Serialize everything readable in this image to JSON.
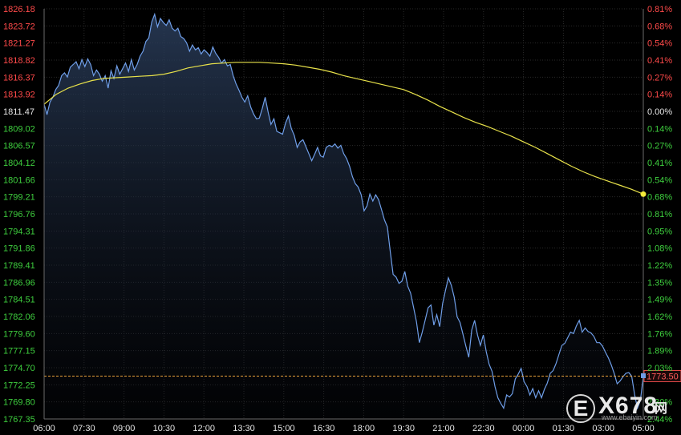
{
  "chart_data": {
    "type": "line",
    "x_ticks": [
      "06:00",
      "07:30",
      "09:00",
      "10:30",
      "12:00",
      "13:30",
      "15:00",
      "16:30",
      "18:00",
      "19:30",
      "21:00",
      "22:30",
      "00:00",
      "01:30",
      "03:00",
      "05:00"
    ],
    "y_ticks_left": [
      "1826.18",
      "1823.72",
      "1821.27",
      "1818.82",
      "1816.37",
      "1813.92",
      "1811.47",
      "1809.02",
      "1806.57",
      "1804.12",
      "1801.66",
      "1799.21",
      "1796.76",
      "1794.31",
      "1791.86",
      "1789.41",
      "1786.96",
      "1784.51",
      "1782.06",
      "1779.60",
      "1777.15",
      "1774.70",
      "1772.25",
      "1769.80",
      "1767.35"
    ],
    "y_ticks_right": [
      "0.81%",
      "0.68%",
      "0.54%",
      "0.41%",
      "0.27%",
      "0.14%",
      "0.00%",
      "0.14%",
      "0.27%",
      "0.41%",
      "0.54%",
      "0.68%",
      "0.81%",
      "0.95%",
      "1.08%",
      "1.22%",
      "1.35%",
      "1.49%",
      "1.62%",
      "1.76%",
      "1.89%",
      "2.03%",
      "",
      "2.30%",
      "2.44%"
    ],
    "ylim": [
      1767.35,
      1826.18
    ],
    "reference_price": 1811.47,
    "last_price_label": "1773.50",
    "last_price": 1773.5,
    "grid": true,
    "series": [
      {
        "values": [
          1812.5,
          1811.0,
          1812.8,
          1813.5,
          1814.6,
          1815.2,
          1816.6,
          1817.0,
          1816.4,
          1817.8,
          1818.2,
          1818.6,
          1817.6,
          1818.9,
          1817.9,
          1819.0,
          1818.2,
          1816.6,
          1817.4,
          1816.8,
          1815.8,
          1816.6,
          1814.8,
          1817.3,
          1816.2,
          1818.0,
          1816.8,
          1817.6,
          1818.4,
          1817.2,
          1818.9,
          1817.4,
          1818.2,
          1819.4,
          1820.1,
          1821.5,
          1822.0,
          1824.3,
          1825.4,
          1823.6,
          1824.8,
          1824.2,
          1823.8,
          1824.6,
          1823.4,
          1823.0,
          1823.4,
          1822.2,
          1821.9,
          1821.3,
          1820.1,
          1821.0,
          1820.3,
          1820.6,
          1819.7,
          1820.3,
          1819.9,
          1819.4,
          1820.7,
          1819.8,
          1819.2,
          1818.4,
          1818.9,
          1818.0,
          1818.2,
          1816.6,
          1815.4,
          1814.5,
          1813.5,
          1812.8,
          1813.7,
          1812.1,
          1811.1,
          1810.4,
          1810.5,
          1811.9,
          1813.5,
          1811.4,
          1809.6,
          1810.4,
          1808.6,
          1808.4,
          1808.2,
          1809.8,
          1810.8,
          1809.0,
          1808.0,
          1806.3,
          1807.1,
          1807.4,
          1806.4,
          1805.4,
          1804.4,
          1805.3,
          1806.3,
          1805.1,
          1804.9,
          1806.3,
          1806.6,
          1806.4,
          1806.8,
          1806.2,
          1806.6,
          1805.4,
          1804.7,
          1803.6,
          1802.1,
          1801.1,
          1800.6,
          1799.5,
          1797.2,
          1797.9,
          1799.6,
          1798.6,
          1799.5,
          1798.8,
          1797.4,
          1795.9,
          1794.9,
          1791.4,
          1788.1,
          1787.7,
          1786.8,
          1787.1,
          1788.5,
          1786.4,
          1785.4,
          1783.4,
          1781.3,
          1778.3,
          1779.8,
          1781.5,
          1783.3,
          1783.7,
          1780.8,
          1782.3,
          1780.6,
          1783.9,
          1785.8,
          1787.6,
          1786.5,
          1784.8,
          1782.0,
          1781.2,
          1779.5,
          1777.8,
          1776.2,
          1780.1,
          1781.5,
          1779.4,
          1777.9,
          1779.4,
          1777.0,
          1775.2,
          1774.2,
          1772.0,
          1770.4,
          1769.6,
          1768.9,
          1770.8,
          1770.5,
          1771.0,
          1773.1,
          1773.8,
          1774.6,
          1772.7,
          1772.0,
          1770.8,
          1771.7,
          1770.4,
          1771.4,
          1770.4,
          1771.6,
          1772.5,
          1773.9,
          1774.3,
          1775.3,
          1776.6,
          1777.9,
          1778.2,
          1779.0,
          1779.8,
          1779.6,
          1780.7,
          1781.5,
          1779.8,
          1780.4,
          1779.9,
          1779.7,
          1779.2,
          1778.3,
          1778.3,
          1777.8,
          1776.9,
          1776.1,
          1775.1,
          1773.9,
          1772.4,
          1772.8,
          1773.4,
          1773.9,
          1774.0,
          1773.5,
          1770.9,
          1768.9,
          1770.0,
          1773.5
        ]
      },
      {
        "values": [
          1812.5,
          1813.9,
          1814.8,
          1815.4,
          1815.9,
          1816.2,
          1816.3,
          1816.4,
          1816.5,
          1816.6,
          1816.8,
          1817.2,
          1817.7,
          1818.0,
          1818.3,
          1818.4,
          1818.5,
          1818.5,
          1818.5,
          1818.4,
          1818.3,
          1818.1,
          1817.8,
          1817.5,
          1817.1,
          1816.6,
          1816.2,
          1815.8,
          1815.4,
          1815.0,
          1814.6,
          1813.9,
          1813.1,
          1812.2,
          1811.4,
          1810.6,
          1809.9,
          1809.3,
          1808.6,
          1807.9,
          1807.1,
          1806.3,
          1805.4,
          1804.5,
          1803.6,
          1802.8,
          1802.1,
          1801.5,
          1800.9,
          1800.3,
          1799.6
        ]
      }
    ]
  },
  "watermark": {
    "logo_letter": "E",
    "logo_number": "X678",
    "logo_cn": "网",
    "url": "www.ebaiyin.com"
  }
}
